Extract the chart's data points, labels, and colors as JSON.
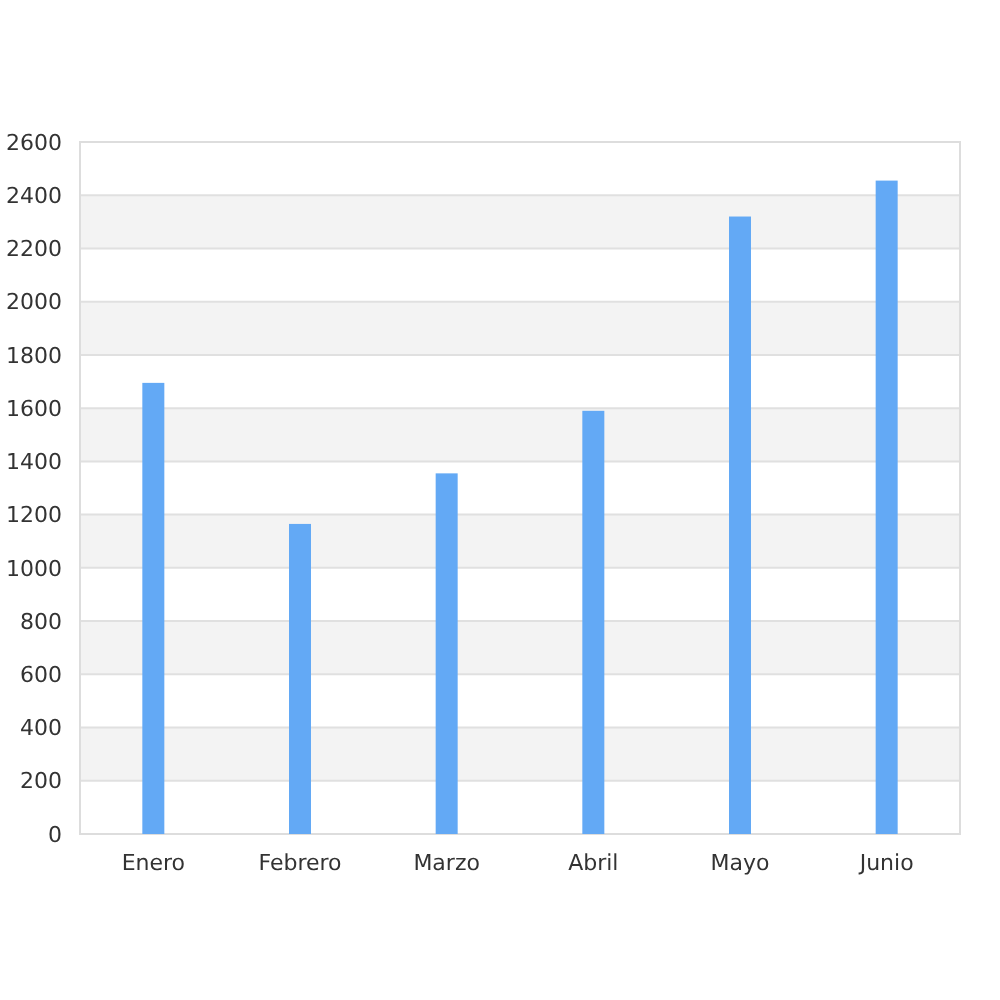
{
  "chart_data": {
    "type": "bar",
    "categories": [
      "Enero",
      "Febrero",
      "Marzo",
      "Abril",
      "Mayo",
      "Junio"
    ],
    "values": [
      1695,
      1165,
      1355,
      1590,
      2320,
      2455
    ],
    "color": "#63a9f5",
    "ylim": [
      0,
      2600
    ],
    "yticks": [
      0,
      200,
      400,
      600,
      800,
      1000,
      1200,
      1400,
      1600,
      1800,
      2000,
      2200,
      2400,
      2600
    ],
    "grid": true
  }
}
